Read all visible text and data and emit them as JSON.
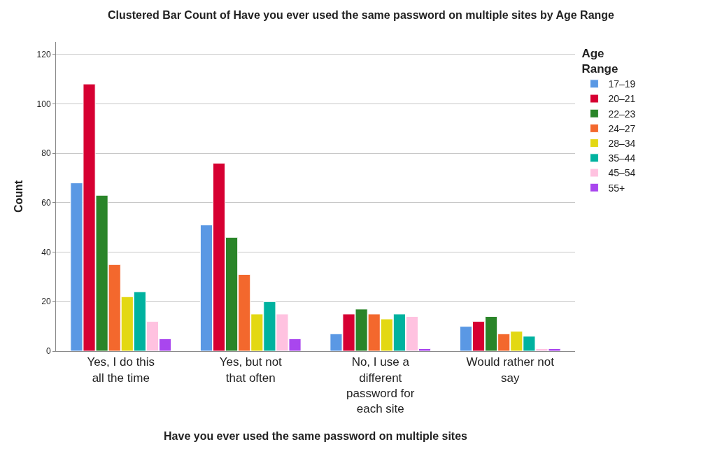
{
  "chart_data": {
    "type": "bar",
    "title": "Clustered Bar Count of Have you ever used the same password on multiple sites by Age Range",
    "xlabel": "Have you ever used the same password on multiple sites",
    "ylabel": "Count",
    "legend_title": "Age Range",
    "categories": [
      "Yes, I do this all the time",
      "Yes, but not that often",
      "No, I use a different password for each site",
      "Would rather not say"
    ],
    "series": [
      {
        "name": "17–19",
        "color": "#5a98e4",
        "values": [
          68,
          51,
          7,
          10
        ]
      },
      {
        "name": "20–21",
        "color": "#d60032",
        "values": [
          108,
          76,
          15,
          12
        ]
      },
      {
        "name": "22–23",
        "color": "#2a8529",
        "values": [
          63,
          46,
          17,
          14
        ]
      },
      {
        "name": "24–27",
        "color": "#f3682d",
        "values": [
          35,
          31,
          15,
          7
        ]
      },
      {
        "name": "28–34",
        "color": "#e3d812",
        "values": [
          22,
          15,
          13,
          8
        ]
      },
      {
        "name": "35–44",
        "color": "#00b29f",
        "values": [
          24,
          20,
          15,
          6
        ]
      },
      {
        "name": "45–54",
        "color": "#ffc2e0",
        "values": [
          12,
          15,
          14,
          1
        ]
      },
      {
        "name": "55+",
        "color": "#a946ee",
        "values": [
          5,
          5,
          1,
          1
        ]
      }
    ],
    "ylim": [
      0,
      125
    ],
    "yticks": [
      0,
      20,
      40,
      60,
      80,
      100,
      120
    ],
    "grid": "y",
    "legend": "top right"
  }
}
